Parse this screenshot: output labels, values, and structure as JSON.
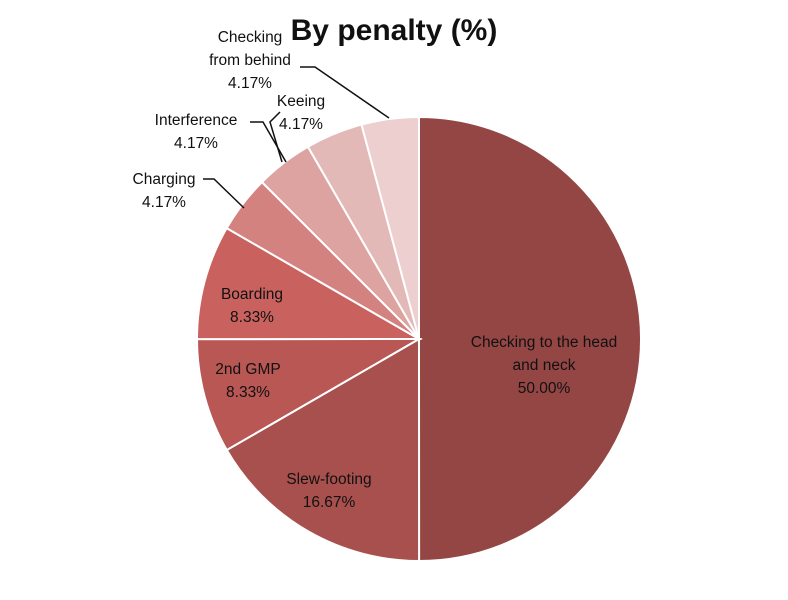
{
  "chart_data": {
    "type": "pie",
    "title": "By penalty (%)",
    "slices": [
      {
        "label": "Checking to the head and neck",
        "label_lines": [
          "Checking to the head",
          "and neck"
        ],
        "value": 50.0,
        "display": "50.00%",
        "color": "#944644"
      },
      {
        "label": "Slew-footing",
        "label_lines": [
          "Slew-footing"
        ],
        "value": 16.67,
        "display": "16.67%",
        "color": "#a8504d"
      },
      {
        "label": "2nd GMP",
        "label_lines": [
          "2nd GMP"
        ],
        "value": 8.33,
        "display": "8.33%",
        "color": "#b95754"
      },
      {
        "label": "Boarding",
        "label_lines": [
          "Boarding"
        ],
        "value": 8.33,
        "display": "8.33%",
        "color": "#c9625e"
      },
      {
        "label": "Charging",
        "label_lines": [
          "Charging"
        ],
        "value": 4.17,
        "display": "4.17%",
        "color": "#d3827f"
      },
      {
        "label": "Interference",
        "label_lines": [
          "Interference"
        ],
        "value": 4.17,
        "display": "4.17%",
        "color": "#dca3a1"
      },
      {
        "label": "Keeing",
        "label_lines": [
          "Keeing"
        ],
        "value": 4.17,
        "display": "4.17%",
        "color": "#e3b9b7"
      },
      {
        "label": "Checking from behind",
        "label_lines": [
          "Checking",
          "from behind"
        ],
        "value": 4.17,
        "display": "4.17%",
        "color": "#eccfce"
      }
    ]
  }
}
